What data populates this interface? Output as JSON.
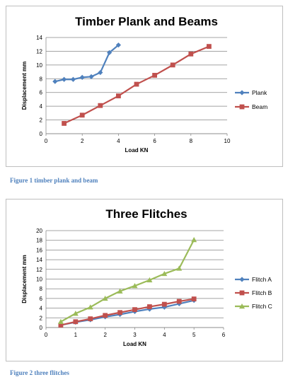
{
  "chart_data": [
    {
      "type": "line",
      "title": "Timber Plank and Beams",
      "xlabel": "Load KN",
      "ylabel": "Displacement mm",
      "xlim": [
        0,
        10
      ],
      "ylim": [
        0,
        14
      ],
      "x_ticks": [
        0,
        2,
        4,
        6,
        8,
        10
      ],
      "y_ticks": [
        0,
        2,
        4,
        6,
        8,
        10,
        12,
        14
      ],
      "grid": "horizontal",
      "legend_position": "right",
      "series": [
        {
          "name": "Plank",
          "color": "#4f81bd",
          "marker": "diamond",
          "x": [
            0.5,
            1.0,
            1.5,
            2.0,
            2.5,
            3.0,
            3.5,
            4.0
          ],
          "y": [
            7.6,
            7.9,
            7.9,
            8.2,
            8.3,
            8.9,
            11.8,
            12.9
          ]
        },
        {
          "name": "Beam",
          "color": "#c0504d",
          "marker": "square",
          "x": [
            1,
            2,
            3,
            4,
            5,
            6,
            7,
            8,
            9
          ],
          "y": [
            1.5,
            2.7,
            4.1,
            5.5,
            7.2,
            8.5,
            10.0,
            11.6,
            12.7
          ]
        }
      ]
    },
    {
      "type": "line",
      "title": "Three Flitches",
      "xlabel": "Load KN",
      "ylabel": "Displacement mm",
      "xlim": [
        0,
        6
      ],
      "ylim": [
        0,
        20
      ],
      "x_ticks": [
        0,
        1,
        2,
        3,
        4,
        5,
        6
      ],
      "y_ticks": [
        0,
        2,
        4,
        6,
        8,
        10,
        12,
        14,
        16,
        18,
        20
      ],
      "grid": "horizontal",
      "legend_position": "right",
      "series": [
        {
          "name": "Flitch A",
          "color": "#4f81bd",
          "marker": "diamond",
          "x": [
            0.5,
            1.0,
            1.5,
            2.0,
            2.5,
            3.0,
            3.5,
            4.0,
            4.5,
            5.0
          ],
          "y": [
            0.5,
            1.1,
            1.6,
            2.2,
            2.7,
            3.3,
            3.8,
            4.2,
            4.9,
            5.6
          ]
        },
        {
          "name": "Flitch B",
          "color": "#c0504d",
          "marker": "square",
          "x": [
            0.5,
            1.0,
            1.5,
            2.0,
            2.5,
            3.0,
            3.5,
            4.0,
            4.5,
            5.0
          ],
          "y": [
            0.5,
            1.2,
            1.8,
            2.5,
            3.1,
            3.7,
            4.3,
            4.8,
            5.4,
            5.9
          ]
        },
        {
          "name": "Flitch C",
          "color": "#9bbb59",
          "marker": "triangle",
          "x": [
            0.5,
            1.0,
            1.5,
            2.0,
            2.5,
            3.0,
            3.5,
            4.0,
            4.5,
            5.0
          ],
          "y": [
            1.2,
            2.9,
            4.2,
            6.0,
            7.5,
            8.6,
            9.8,
            11.1,
            12.2,
            18.1
          ]
        }
      ]
    }
  ],
  "captions": {
    "figure1": "Figure 1 timber plank and beam",
    "figure2": "Figure 2 three flitches"
  }
}
